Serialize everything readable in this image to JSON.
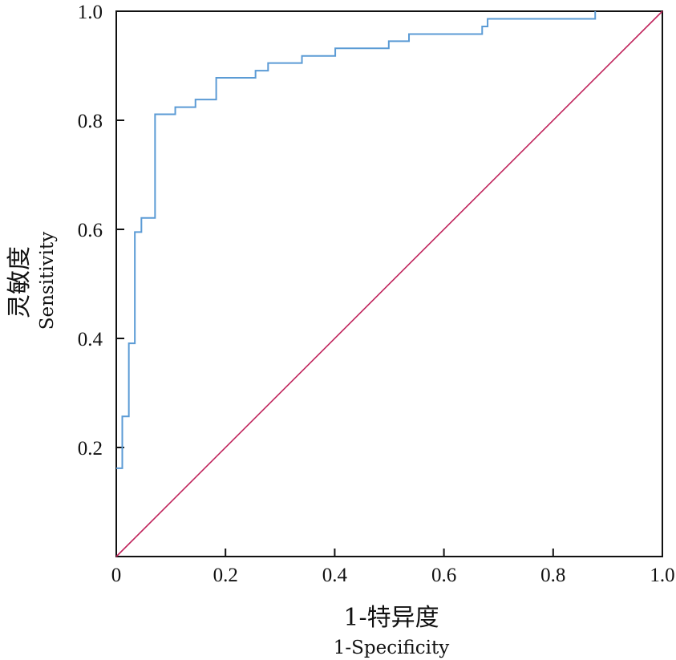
{
  "chart_data": {
    "type": "line",
    "xlabel": "1-特异度",
    "xlabel_en": "1-Specificity",
    "ylabel": "灵敏度",
    "ylabel_en": "Sensitivity",
    "xlim": [
      0,
      1
    ],
    "ylim": [
      0,
      1
    ],
    "x_ticks": [
      {
        "value": 0,
        "label": "0"
      },
      {
        "value": 0.2,
        "label": "0.2"
      },
      {
        "value": 0.4,
        "label": "0.4"
      },
      {
        "value": 0.6,
        "label": "0.6"
      },
      {
        "value": 0.8,
        "label": "0.8"
      },
      {
        "value": 1.0,
        "label": "1.0"
      }
    ],
    "y_ticks": [
      {
        "value": 0.2,
        "label": "0.2"
      },
      {
        "value": 0.4,
        "label": "0.4"
      },
      {
        "value": 0.6,
        "label": "0.6"
      },
      {
        "value": 0.8,
        "label": "0.8"
      },
      {
        "value": 1.0,
        "label": "1.0"
      }
    ],
    "grid": false,
    "legend": "none",
    "series": [
      {
        "color": "#5b9bd5",
        "style": "step",
        "points": [
          [
            0.0,
            0.162
          ],
          [
            0.011,
            0.162
          ],
          [
            0.011,
            0.257
          ],
          [
            0.023,
            0.257
          ],
          [
            0.023,
            0.391
          ],
          [
            0.034,
            0.391
          ],
          [
            0.034,
            0.595
          ],
          [
            0.046,
            0.595
          ],
          [
            0.046,
            0.621
          ],
          [
            0.071,
            0.621
          ],
          [
            0.071,
            0.811
          ],
          [
            0.108,
            0.811
          ],
          [
            0.108,
            0.824
          ],
          [
            0.145,
            0.824
          ],
          [
            0.145,
            0.838
          ],
          [
            0.183,
            0.838
          ],
          [
            0.183,
            0.878
          ],
          [
            0.255,
            0.878
          ],
          [
            0.255,
            0.891
          ],
          [
            0.278,
            0.891
          ],
          [
            0.278,
            0.905
          ],
          [
            0.34,
            0.905
          ],
          [
            0.34,
            0.918
          ],
          [
            0.401,
            0.918
          ],
          [
            0.401,
            0.932
          ],
          [
            0.499,
            0.932
          ],
          [
            0.499,
            0.945
          ],
          [
            0.536,
            0.945
          ],
          [
            0.536,
            0.958
          ],
          [
            0.67,
            0.958
          ],
          [
            0.67,
            0.972
          ],
          [
            0.68,
            0.972
          ],
          [
            0.68,
            0.986
          ],
          [
            0.877,
            0.986
          ],
          [
            0.877,
            1.0
          ]
        ]
      },
      {
        "color": "#c0245c",
        "style": "line",
        "points": [
          [
            0,
            0
          ],
          [
            1,
            1
          ]
        ]
      }
    ]
  }
}
